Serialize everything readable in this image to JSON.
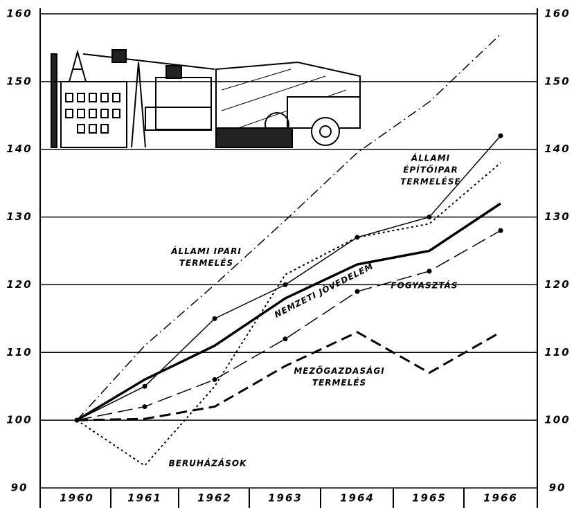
{
  "chart_data": {
    "type": "line",
    "categories": [
      "1960",
      "1961",
      "1962",
      "1963",
      "1964",
      "1965",
      "1966"
    ],
    "ylim": [
      90,
      160
    ],
    "yticks": [
      90,
      100,
      110,
      120,
      130,
      140,
      150,
      160
    ],
    "grid": true,
    "series": [
      {
        "name": "ÁLLAMI IPARI TERMELÉS",
        "color": "#000000",
        "line_style": "dashdot",
        "markers": false,
        "values": [
          100,
          111,
          120,
          129.5,
          139.5,
          147,
          157
        ]
      },
      {
        "name": "ÁLLAMI ÉPÍTŐIPAR TERMELÉSE",
        "color": "#000000",
        "line_style": "thin",
        "markers": true,
        "values": [
          100,
          105,
          115,
          120,
          127,
          130,
          142
        ]
      },
      {
        "name": "NEMZETI JÖVEDELEM",
        "color": "#000000",
        "line_style": "thick",
        "markers": false,
        "values": [
          100,
          106,
          111,
          118,
          123,
          125,
          132
        ]
      },
      {
        "name": "FOGYASZTÁS",
        "color": "#000000",
        "line_style": "longdash",
        "markers": true,
        "values": [
          100,
          102,
          106,
          112,
          119,
          122,
          128
        ]
      },
      {
        "name": "MEZŐGAZDASÁGI TERMELÉS",
        "color": "#000000",
        "line_style": "thickdash",
        "markers": false,
        "values": [
          100,
          100.2,
          102,
          108,
          113,
          107,
          113
        ]
      },
      {
        "name": "BERUHÁZÁSOK",
        "color": "#000000",
        "line_style": "dotted",
        "markers": false,
        "values": [
          100,
          93.3,
          105,
          121.5,
          127,
          129,
          138
        ]
      }
    ]
  }
}
